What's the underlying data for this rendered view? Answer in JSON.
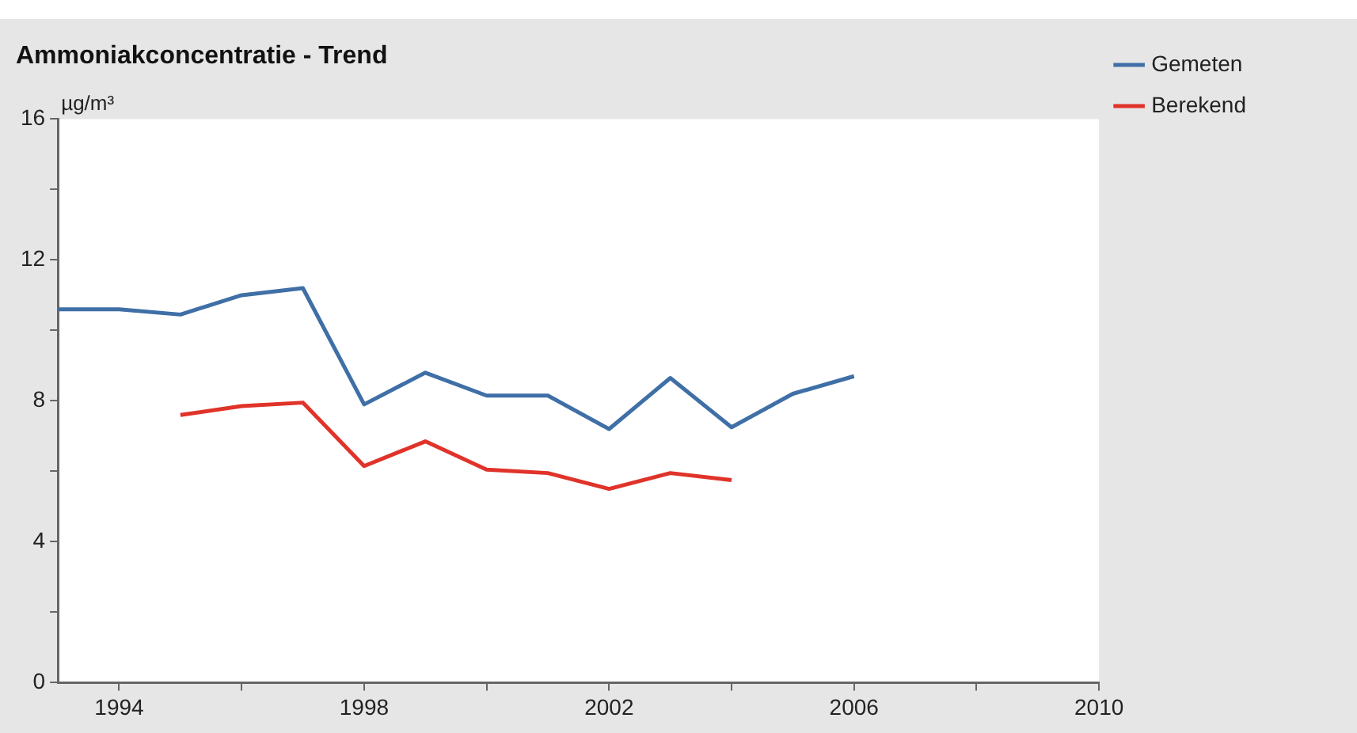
{
  "chart_data": {
    "type": "line",
    "title": "Ammoniakconcentratie - Trend",
    "ylabel": "µg/m³",
    "xlim": [
      1993,
      2010
    ],
    "xticks": [
      {
        "value": 1994,
        "label": "1994"
      },
      {
        "value": 1996,
        "label": null
      },
      {
        "value": 1998,
        "label": "1998"
      },
      {
        "value": 2000,
        "label": null
      },
      {
        "value": 2002,
        "label": "2002"
      },
      {
        "value": 2004,
        "label": null
      },
      {
        "value": 2006,
        "label": "2006"
      },
      {
        "value": 2008,
        "label": null
      },
      {
        "value": 2010,
        "label": "2010"
      }
    ],
    "ylim": [
      0,
      16
    ],
    "yticks": [
      0,
      {
        "value": 2,
        "label": null
      },
      4,
      {
        "value": 6,
        "label": null
      },
      8,
      {
        "value": 10,
        "label": null
      },
      12,
      {
        "value": 14,
        "label": null
      },
      16
    ],
    "grid": false,
    "legend": "top right",
    "marker": "none",
    "line_style": "solid",
    "series": [
      {
        "name": "Gemeten",
        "color": "#3f6fa6",
        "x": [
          1993,
          1994,
          1995,
          1996,
          1997,
          1998,
          1999,
          2000,
          2001,
          2002,
          2003,
          2004,
          2005,
          2006
        ],
        "values": [
          10.6,
          10.6,
          10.45,
          11.0,
          11.2,
          7.9,
          8.8,
          8.15,
          8.15,
          7.2,
          8.65,
          7.25,
          8.2,
          8.7
        ]
      },
      {
        "name": "Berekend",
        "color": "#e0332a",
        "x": [
          1995,
          1996,
          1997,
          1998,
          1999,
          2000,
          2001,
          2002,
          2003,
          2004
        ],
        "values": [
          7.6,
          7.85,
          7.95,
          6.15,
          6.85,
          6.05,
          5.95,
          5.5,
          5.95,
          5.75
        ]
      }
    ]
  }
}
